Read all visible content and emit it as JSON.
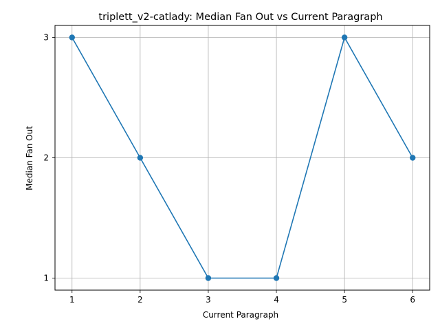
{
  "chart_data": {
    "type": "line",
    "title": "triplett_v2-catlady: Median Fan Out vs Current Paragraph",
    "xlabel": "Current Paragraph",
    "ylabel": "Median Fan Out",
    "x": [
      1,
      2,
      3,
      4,
      5,
      6
    ],
    "series": [
      {
        "values": [
          3,
          2,
          1,
          1,
          3,
          2
        ],
        "color": "#1f77b4"
      }
    ],
    "xticks": [
      "1",
      "2",
      "3",
      "4",
      "5",
      "6"
    ],
    "yticks": [
      "1",
      "2",
      "3"
    ],
    "xlim": [
      0.75,
      6.25
    ],
    "ylim": [
      0.9,
      3.1
    ],
    "grid": true,
    "legend": "none"
  }
}
